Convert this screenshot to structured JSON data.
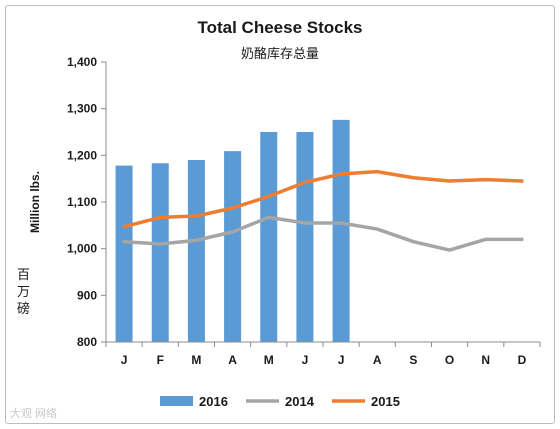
{
  "chart_data": {
    "type": "bar",
    "title": "Total Cheese Stocks",
    "subtitle": "奶酪库存总量",
    "ylabel": "Million lbs.",
    "ylabel_cn": "百万磅",
    "ylim": [
      800,
      1400
    ],
    "yticks": [
      "800",
      "900",
      "1,000",
      "1,100",
      "1,200",
      "1,300",
      "1,400"
    ],
    "ytick_values": [
      800,
      900,
      1000,
      1100,
      1200,
      1300,
      1400
    ],
    "categories": [
      "J",
      "F",
      "M",
      "A",
      "M",
      "J",
      "J",
      "A",
      "S",
      "O",
      "N",
      "D"
    ],
    "grid": false,
    "legend_position": "bottom",
    "series": [
      {
        "name": "2016",
        "type": "bar",
        "color": "#5b9bd5",
        "values": [
          1178,
          1183,
          1190,
          1209,
          1250,
          1250,
          1276,
          null,
          null,
          null,
          null,
          null
        ]
      },
      {
        "name": "2014",
        "type": "line",
        "color": "#a5a5a5",
        "values": [
          1015,
          1010,
          1018,
          1036,
          1067,
          1055,
          1055,
          1042,
          1015,
          997,
          1020,
          1020
        ]
      },
      {
        "name": "2015",
        "type": "line",
        "color": "#ed7d31",
        "values": [
          1047,
          1067,
          1070,
          1087,
          1112,
          1142,
          1160,
          1165,
          1152,
          1145,
          1148,
          1145
        ]
      }
    ]
  },
  "watermark": "大观 网络"
}
